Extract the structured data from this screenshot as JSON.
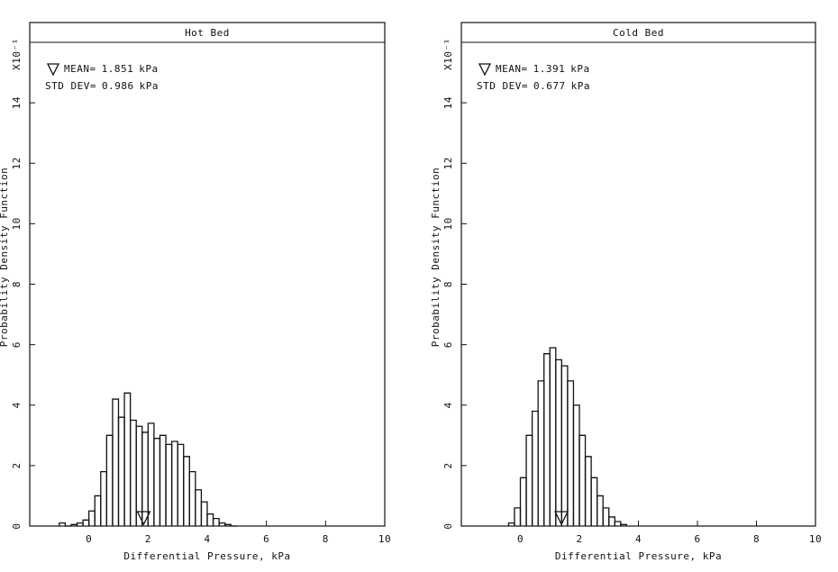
{
  "chart_data": [
    {
      "type": "histogram",
      "title": "Hot Bed",
      "xlabel": "Differential Pressure, kPa",
      "ylabel": "Probability Density Function",
      "y_multiplier": "X10⁻¹",
      "mean_label": "MEAN=",
      "mean": 1.851,
      "mean_unit": "kPa",
      "std_label": "STD DEV=",
      "std": 0.986,
      "std_unit": "kPa",
      "bins": [
        -1.0,
        -0.8,
        -0.6,
        -0.4,
        -0.2,
        0,
        0.2,
        0.4,
        0.6,
        0.8,
        1.0,
        1.2,
        1.4,
        1.6,
        1.8,
        2.0,
        2.2,
        2.4,
        2.6,
        2.8,
        3.0,
        3.2,
        3.4,
        3.6,
        3.8,
        4.0,
        4.2,
        4.4,
        4.6,
        4.8,
        5.0
      ],
      "values": [
        0.1,
        0,
        0.05,
        0.1,
        0.2,
        0.5,
        1.0,
        1.8,
        3.0,
        4.2,
        3.6,
        4.4,
        3.5,
        3.3,
        3.1,
        3.4,
        2.9,
        3.0,
        2.7,
        2.8,
        2.7,
        2.3,
        1.8,
        1.2,
        0.8,
        0.4,
        0.25,
        0.1,
        0.05,
        0
      ],
      "color": "#111111",
      "xlim": [
        -2,
        10
      ],
      "ylim": [
        0,
        16
      ],
      "xticks": [
        0,
        2,
        4,
        6,
        8,
        10
      ],
      "yticks": [
        0,
        2,
        4,
        6,
        8,
        10,
        12,
        14
      ]
    },
    {
      "type": "histogram",
      "title": "Cold Bed",
      "xlabel": "Differential Pressure, kPa",
      "ylabel": "Probability Density Function",
      "y_multiplier": "X10⁻¹",
      "mean_label": "MEAN=",
      "mean": 1.391,
      "mean_unit": "kPa",
      "std_label": "STD DEV=",
      "std": 0.677,
      "std_unit": "kPa",
      "bins": [
        -0.4,
        -0.2,
        0,
        0.2,
        0.4,
        0.6,
        0.8,
        1.0,
        1.2,
        1.4,
        1.6,
        1.8,
        2.0,
        2.2,
        2.4,
        2.6,
        2.8,
        3.0,
        3.2,
        3.4,
        3.6
      ],
      "values": [
        0.1,
        0.6,
        1.6,
        3.0,
        3.8,
        4.8,
        5.7,
        5.9,
        5.5,
        5.3,
        4.8,
        4.0,
        3.0,
        2.3,
        1.6,
        1.0,
        0.6,
        0.3,
        0.15,
        0.05
      ],
      "color": "#111111",
      "xlim": [
        -2,
        10
      ],
      "ylim": [
        0,
        16
      ],
      "xticks": [
        0,
        2,
        4,
        6,
        8,
        10
      ],
      "yticks": [
        0,
        2,
        4,
        6,
        8,
        10,
        12,
        14
      ]
    }
  ]
}
